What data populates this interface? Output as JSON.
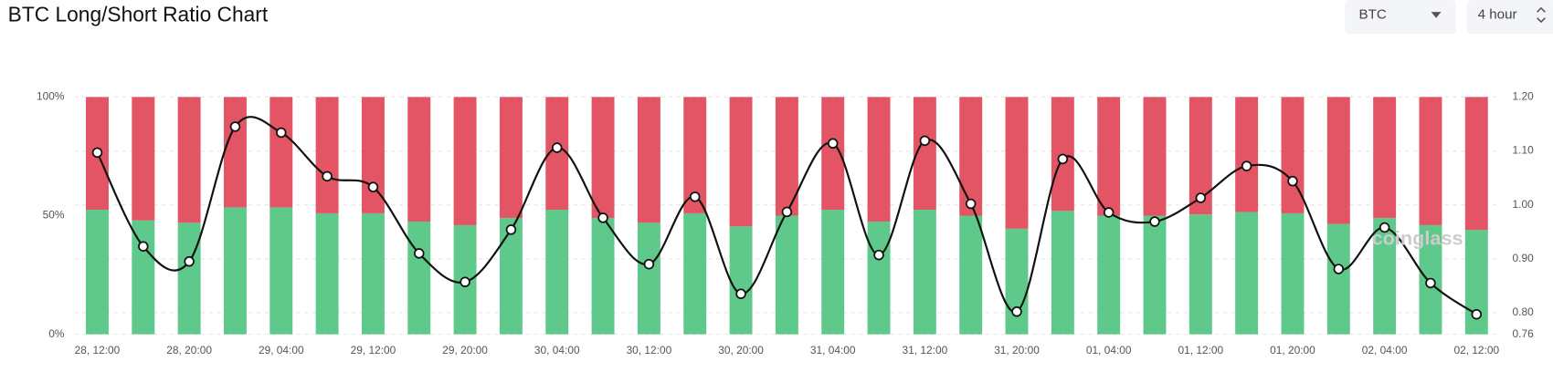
{
  "header": {
    "title": "BTC Long/Short Ratio Chart",
    "symbol_select": "BTC",
    "interval_select": "4 hour"
  },
  "watermark": "coinglass",
  "chart_data": {
    "type": "stacked-bar-line",
    "categories": [
      "28, 12:00",
      null,
      "28, 20:00",
      null,
      "29, 04:00",
      null,
      "29, 12:00",
      null,
      "29, 20:00",
      null,
      "30, 04:00",
      null,
      "30, 12:00",
      null,
      "30, 20:00",
      null,
      "31, 04:00",
      null,
      "31, 12:00",
      null,
      "31, 20:00",
      null,
      "01, 04:00",
      null,
      "01, 12:00",
      null,
      "01, 20:00",
      null,
      "02, 04:00",
      null,
      "02, 12:00"
    ],
    "series": [
      {
        "color": "#5ec98a",
        "values": [
          52.5,
          48,
          47,
          53.5,
          53.5,
          51,
          51,
          47.5,
          46,
          49,
          52.5,
          49,
          47,
          51,
          45.5,
          50,
          52.5,
          47.5,
          52.5,
          50,
          44.5,
          52,
          50,
          50,
          50.5,
          51.5,
          51,
          46.5,
          49,
          46,
          44
        ]
      },
      {
        "color": "#e35564",
        "values": [
          47.5,
          52,
          53,
          46.5,
          46.5,
          49,
          49,
          52.5,
          54,
          51,
          47.5,
          51,
          53,
          49,
          54.5,
          50,
          47.5,
          52.5,
          47.5,
          50,
          55.5,
          48,
          50,
          50,
          49.5,
          48.5,
          49,
          53.5,
          51,
          54,
          56
        ]
      },
      {
        "color": "#111111",
        "axis": "y2",
        "values": [
          1.097,
          0.923,
          0.895,
          1.145,
          1.134,
          1.053,
          1.033,
          0.91,
          0.857,
          0.954,
          1.106,
          0.976,
          0.89,
          1.015,
          0.835,
          0.987,
          1.114,
          0.907,
          1.119,
          1.002,
          0.802,
          1.085,
          0.986,
          0.969,
          1.013,
          1.072,
          1.044,
          0.881,
          0.958,
          0.855,
          0.797
        ]
      }
    ],
    "ylim": [
      0,
      100
    ],
    "yticks": [
      {
        "value": 0,
        "label": "0%"
      },
      {
        "value": 50,
        "label": "50%"
      },
      {
        "value": 100,
        "label": "100%"
      }
    ],
    "y2lim": [
      0.76,
      1.2
    ],
    "y2ticks": [
      0.76,
      {
        "value": 0.8,
        "label": "0.80"
      },
      {
        "value": 0.9,
        "label": "0.90"
      },
      {
        "value": 1,
        "label": "1.00"
      },
      {
        "value": 1.1,
        "label": "1.10"
      },
      {
        "value": 1.2,
        "label": "1.20"
      }
    ],
    "grid": true
  }
}
